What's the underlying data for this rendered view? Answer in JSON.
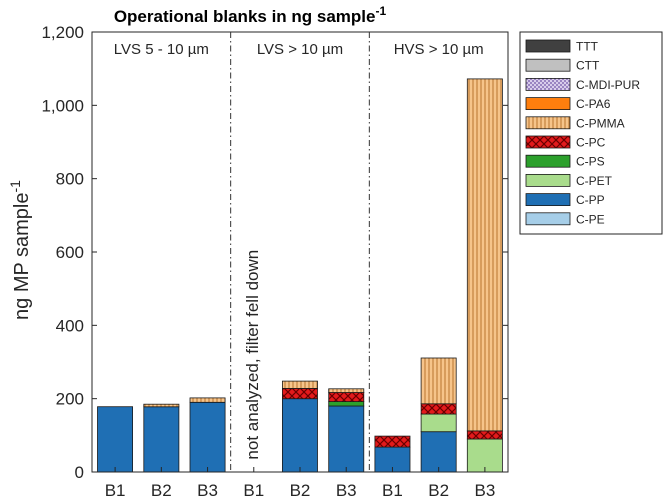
{
  "chart_data": {
    "type": "bar",
    "stacked": true,
    "title": "Operational blanks in ng sample",
    "title_superscript": "-1",
    "ylabel": "ng MP sample",
    "ylabel_superscript": "-1",
    "ylim": [
      0,
      1200
    ],
    "yticks": [
      0,
      200,
      400,
      600,
      800,
      1000,
      1200
    ],
    "ytick_labels": [
      "0",
      "200",
      "400",
      "600",
      "800",
      "1,000",
      "1,200"
    ],
    "categories": [
      "B1",
      "B2",
      "B3",
      "B1",
      "B2",
      "B3",
      "B1",
      "B2",
      "B3"
    ],
    "groups": [
      {
        "label": "LVS 5 - 10 µm",
        "start": 0,
        "end": 2
      },
      {
        "label": "LVS > 10 µm",
        "start": 3,
        "end": 5
      },
      {
        "label": "HVS > 10 µm",
        "start": 6,
        "end": 8
      }
    ],
    "annotation": "not analyzed, filter fell down",
    "series": [
      {
        "name": "C-PE",
        "color": "#a6cee8",
        "pattern": "solid",
        "values": [
          0,
          0,
          0,
          0,
          0,
          0,
          0,
          0,
          0
        ]
      },
      {
        "name": "C-PP",
        "color": "#1f6fb4",
        "pattern": "solid",
        "values": [
          178,
          178,
          190,
          0,
          200,
          180,
          68,
          110,
          0
        ]
      },
      {
        "name": "C-PET",
        "color": "#a9dc8c",
        "pattern": "solid",
        "values": [
          0,
          0,
          0,
          0,
          0,
          0,
          0,
          48,
          90
        ]
      },
      {
        "name": "C-PS",
        "color": "#2ca02c",
        "pattern": "solid",
        "values": [
          0,
          0,
          0,
          0,
          0,
          12,
          0,
          0,
          0
        ]
      },
      {
        "name": "C-PC",
        "color": "#e31a1c",
        "pattern": "crosshatch",
        "values": [
          0,
          0,
          0,
          0,
          28,
          25,
          30,
          28,
          22
        ]
      },
      {
        "name": "C-PMMA",
        "color": "#f6c48a",
        "pattern": "vertical",
        "values": [
          0,
          7,
          12,
          0,
          20,
          10,
          0,
          125,
          960
        ]
      },
      {
        "name": "C-PA6",
        "color": "#ff7f0e",
        "pattern": "solid",
        "values": [
          0,
          0,
          0,
          0,
          0,
          0,
          0,
          0,
          0
        ]
      },
      {
        "name": "C-MDI-PUR",
        "color": "#c4b0dc",
        "pattern": "checker",
        "values": [
          0,
          0,
          0,
          0,
          0,
          0,
          0,
          0,
          0
        ]
      },
      {
        "name": "CTT",
        "color": "#c0c0c0",
        "pattern": "solid",
        "values": [
          0,
          0,
          0,
          0,
          0,
          0,
          0,
          0,
          0
        ]
      },
      {
        "name": "TTT",
        "color": "#404040",
        "pattern": "solid",
        "values": [
          0,
          0,
          0,
          0,
          0,
          0,
          0,
          0,
          0
        ]
      }
    ],
    "legend_order": [
      "TTT",
      "CTT",
      "C-MDI-PUR",
      "C-PA6",
      "C-PMMA",
      "C-PC",
      "C-PS",
      "C-PET",
      "C-PP",
      "C-PE"
    ],
    "legend_position": "right",
    "grid": false
  }
}
